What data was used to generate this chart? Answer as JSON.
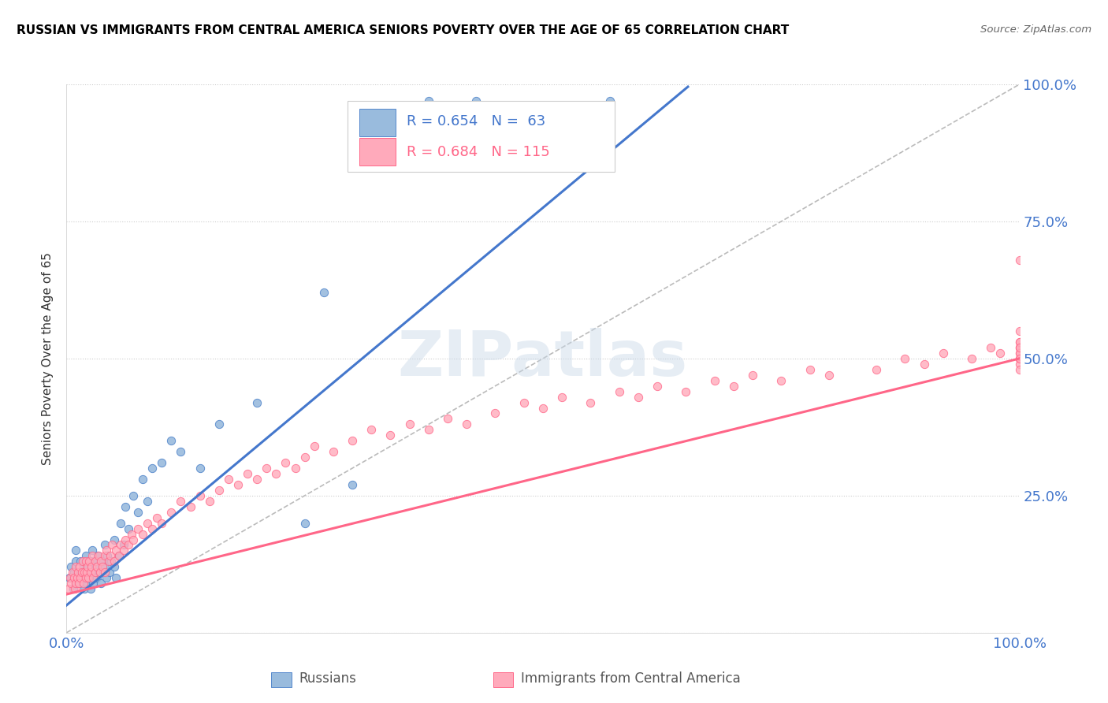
{
  "title": "RUSSIAN VS IMMIGRANTS FROM CENTRAL AMERICA SENIORS POVERTY OVER THE AGE OF 65 CORRELATION CHART",
  "source": "Source: ZipAtlas.com",
  "ylabel": "Seniors Poverty Over the Age of 65",
  "xlim": [
    0,
    1.0
  ],
  "ylim": [
    0,
    1.0
  ],
  "yticks": [
    0.0,
    0.25,
    0.5,
    0.75,
    1.0
  ],
  "yticklabels": [
    "",
    "25.0%",
    "50.0%",
    "75.0%",
    "100.0%"
  ],
  "xticks": [
    0.0,
    0.25,
    0.5,
    0.75,
    1.0
  ],
  "xticklabels": [
    "0.0%",
    "",
    "",
    "",
    "100.0%"
  ],
  "legend_r1": "0.654",
  "legend_n1": "63",
  "legend_r2": "0.684",
  "legend_n2": "115",
  "color_russian": "#99BBDD",
  "color_russian_edge": "#5588CC",
  "color_central": "#FFAABB",
  "color_central_edge": "#FF6688",
  "color_russian_line": "#4477CC",
  "color_central_line": "#FF6688",
  "color_diagonal": "#BBBBBB",
  "watermark": "ZIPatlas",
  "legend_label1": "Russians",
  "legend_label2": "Immigrants from Central America",
  "ru_x": [
    0.003,
    0.005,
    0.007,
    0.008,
    0.01,
    0.01,
    0.01,
    0.012,
    0.013,
    0.015,
    0.015,
    0.017,
    0.018,
    0.019,
    0.02,
    0.02,
    0.021,
    0.022,
    0.023,
    0.025,
    0.025,
    0.026,
    0.027,
    0.028,
    0.03,
    0.03,
    0.031,
    0.032,
    0.033,
    0.035,
    0.036,
    0.038,
    0.04,
    0.04,
    0.042,
    0.043,
    0.045,
    0.047,
    0.05,
    0.05,
    0.052,
    0.055,
    0.057,
    0.06,
    0.062,
    0.065,
    0.07,
    0.075,
    0.08,
    0.085,
    0.09,
    0.1,
    0.11,
    0.12,
    0.14,
    0.16,
    0.2,
    0.25,
    0.27,
    0.3,
    0.38,
    0.43,
    0.57
  ],
  "ru_y": [
    0.1,
    0.12,
    0.08,
    0.11,
    0.09,
    0.13,
    0.15,
    0.11,
    0.1,
    0.09,
    0.13,
    0.1,
    0.12,
    0.08,
    0.11,
    0.14,
    0.09,
    0.12,
    0.1,
    0.13,
    0.08,
    0.11,
    0.15,
    0.09,
    0.1,
    0.13,
    0.12,
    0.1,
    0.14,
    0.11,
    0.09,
    0.13,
    0.12,
    0.16,
    0.1,
    0.14,
    0.11,
    0.13,
    0.12,
    0.17,
    0.1,
    0.14,
    0.2,
    0.16,
    0.23,
    0.19,
    0.25,
    0.22,
    0.28,
    0.24,
    0.3,
    0.31,
    0.35,
    0.33,
    0.3,
    0.38,
    0.42,
    0.2,
    0.62,
    0.27,
    0.97,
    0.97,
    0.97
  ],
  "ca_x": [
    0.002,
    0.004,
    0.005,
    0.006,
    0.008,
    0.009,
    0.01,
    0.01,
    0.011,
    0.012,
    0.013,
    0.014,
    0.015,
    0.016,
    0.017,
    0.018,
    0.019,
    0.02,
    0.02,
    0.021,
    0.022,
    0.023,
    0.024,
    0.025,
    0.026,
    0.027,
    0.028,
    0.03,
    0.03,
    0.032,
    0.034,
    0.035,
    0.036,
    0.038,
    0.04,
    0.04,
    0.042,
    0.044,
    0.046,
    0.048,
    0.05,
    0.052,
    0.055,
    0.057,
    0.06,
    0.062,
    0.065,
    0.068,
    0.07,
    0.075,
    0.08,
    0.085,
    0.09,
    0.095,
    0.1,
    0.11,
    0.12,
    0.13,
    0.14,
    0.15,
    0.16,
    0.17,
    0.18,
    0.19,
    0.2,
    0.21,
    0.22,
    0.23,
    0.24,
    0.25,
    0.26,
    0.28,
    0.3,
    0.32,
    0.34,
    0.36,
    0.38,
    0.4,
    0.42,
    0.45,
    0.48,
    0.5,
    0.52,
    0.55,
    0.58,
    0.6,
    0.62,
    0.65,
    0.68,
    0.7,
    0.72,
    0.75,
    0.78,
    0.8,
    0.85,
    0.88,
    0.9,
    0.92,
    0.95,
    0.97,
    0.98,
    1.0,
    1.0,
    1.0,
    1.0,
    1.0,
    1.0,
    1.0,
    1.0,
    1.0,
    1.0,
    1.0,
    1.0,
    1.0,
    1.0
  ],
  "ca_y": [
    0.08,
    0.1,
    0.09,
    0.11,
    0.1,
    0.08,
    0.09,
    0.12,
    0.1,
    0.11,
    0.09,
    0.12,
    0.1,
    0.11,
    0.13,
    0.09,
    0.11,
    0.1,
    0.13,
    0.11,
    0.12,
    0.1,
    0.13,
    0.11,
    0.12,
    0.14,
    0.1,
    0.11,
    0.13,
    0.12,
    0.14,
    0.11,
    0.13,
    0.12,
    0.14,
    0.11,
    0.15,
    0.13,
    0.14,
    0.16,
    0.13,
    0.15,
    0.14,
    0.16,
    0.15,
    0.17,
    0.16,
    0.18,
    0.17,
    0.19,
    0.18,
    0.2,
    0.19,
    0.21,
    0.2,
    0.22,
    0.24,
    0.23,
    0.25,
    0.24,
    0.26,
    0.28,
    0.27,
    0.29,
    0.28,
    0.3,
    0.29,
    0.31,
    0.3,
    0.32,
    0.34,
    0.33,
    0.35,
    0.37,
    0.36,
    0.38,
    0.37,
    0.39,
    0.38,
    0.4,
    0.42,
    0.41,
    0.43,
    0.42,
    0.44,
    0.43,
    0.45,
    0.44,
    0.46,
    0.45,
    0.47,
    0.46,
    0.48,
    0.47,
    0.48,
    0.5,
    0.49,
    0.51,
    0.5,
    0.52,
    0.51,
    0.5,
    0.52,
    0.51,
    0.53,
    0.52,
    0.5,
    0.49,
    0.51,
    0.53,
    0.52,
    0.5,
    0.55,
    0.48,
    0.68
  ]
}
